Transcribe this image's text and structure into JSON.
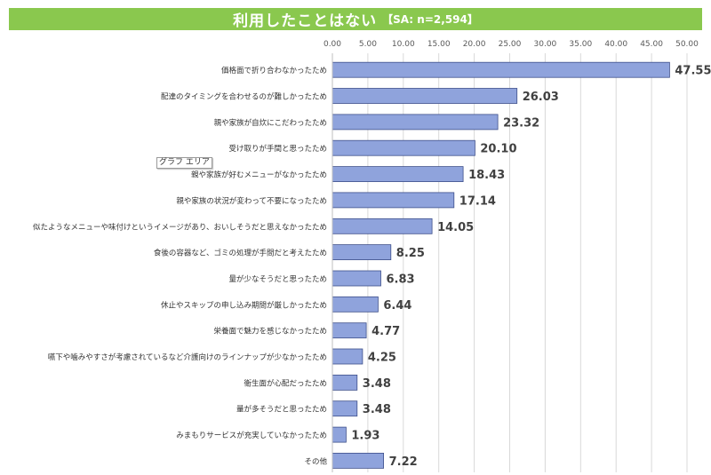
{
  "title": {
    "main": "利用したことはない",
    "sub": "【SA: n=2,594】"
  },
  "tooltip": "グラフ エリア",
  "colors": {
    "title_bg": "#8ac84e",
    "bar_fill": "#8fa3dc",
    "bar_stroke": "#3e4f8a",
    "grid": "#d9d9d9"
  },
  "chart_data": {
    "type": "bar",
    "orientation": "horizontal",
    "categories": [
      "価格面で折り合わなかったため",
      "配達のタイミングを合わせるのが難しかったため",
      "親や家族が自炊にこだわったため",
      "受け取りが手間と思ったため",
      "親や家族が好むメニューがなかったため",
      "親や家族の状況が変わって不要になったため",
      "似たようなメニューや味付けというイメージがあり、おいしそうだと思えなかったため",
      "食後の容器など、ゴミの処理が手間だと考えたため",
      "量が少なそうだと思ったため",
      "休止やスキップの申し込み期間が厳しかったため",
      "栄養面で魅力を感じなかったため",
      "嚥下や噛みやすさが考慮されているなど介護向けのラインナップが少なかったため",
      "衛生面が心配だったため",
      "量が多そうだと思ったため",
      "みまもりサービスが充実していなかったため",
      "その他"
    ],
    "values": [
      47.55,
      26.03,
      23.32,
      20.1,
      18.43,
      17.14,
      14.05,
      8.25,
      6.83,
      6.44,
      4.77,
      4.25,
      3.48,
      3.48,
      1.93,
      7.22
    ],
    "value_labels": [
      "47.55",
      "26.03",
      "23.32",
      "20.10",
      "18.43",
      "17.14",
      "14.05",
      "8.25",
      "6.83",
      "6.44",
      "4.77",
      "4.25",
      "3.48",
      "3.48",
      "1.93",
      "7.22"
    ],
    "xlim": [
      0,
      50
    ],
    "x_ticks": [
      "0.00",
      "5.00",
      "10.00",
      "15.00",
      "20.00",
      "25.00",
      "30.00",
      "35.00",
      "40.00",
      "45.00",
      "50.00"
    ],
    "x_axis_position": "top",
    "grid": true
  }
}
